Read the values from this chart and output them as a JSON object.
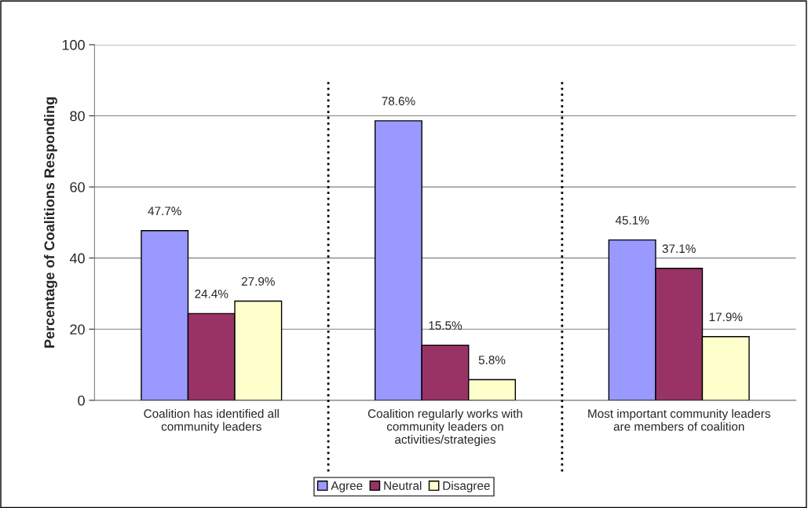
{
  "chart_data": {
    "type": "bar",
    "ylabel": "Percentage of Coalitions Responding",
    "categories": [
      "Coalition has identified all\ncommunity leaders",
      "Coalition regularly works with\ncommunity leaders on\nactivities/strategies",
      "Most important community leaders\nare members of coalition"
    ],
    "series": [
      {
        "name": "Agree",
        "color": "#9999ff",
        "values": [
          47.7,
          78.6,
          45.1
        ],
        "value_labels": [
          "47.7%",
          "78.6%",
          "45.1%"
        ]
      },
      {
        "name": "Neutral",
        "color": "#993366",
        "values": [
          24.4,
          15.5,
          37.1
        ],
        "value_labels": [
          "24.4%",
          "15.5%",
          "37.1%"
        ]
      },
      {
        "name": "Disagree",
        "color": "#ffffcc",
        "values": [
          27.9,
          5.8,
          17.9
        ],
        "value_labels": [
          "27.9%",
          "5.8%",
          "17.9%"
        ]
      }
    ],
    "ylim": [
      0,
      100
    ],
    "yticks": [
      0,
      20,
      40,
      60,
      80,
      100
    ],
    "grid": "y",
    "legend": "bottom"
  }
}
